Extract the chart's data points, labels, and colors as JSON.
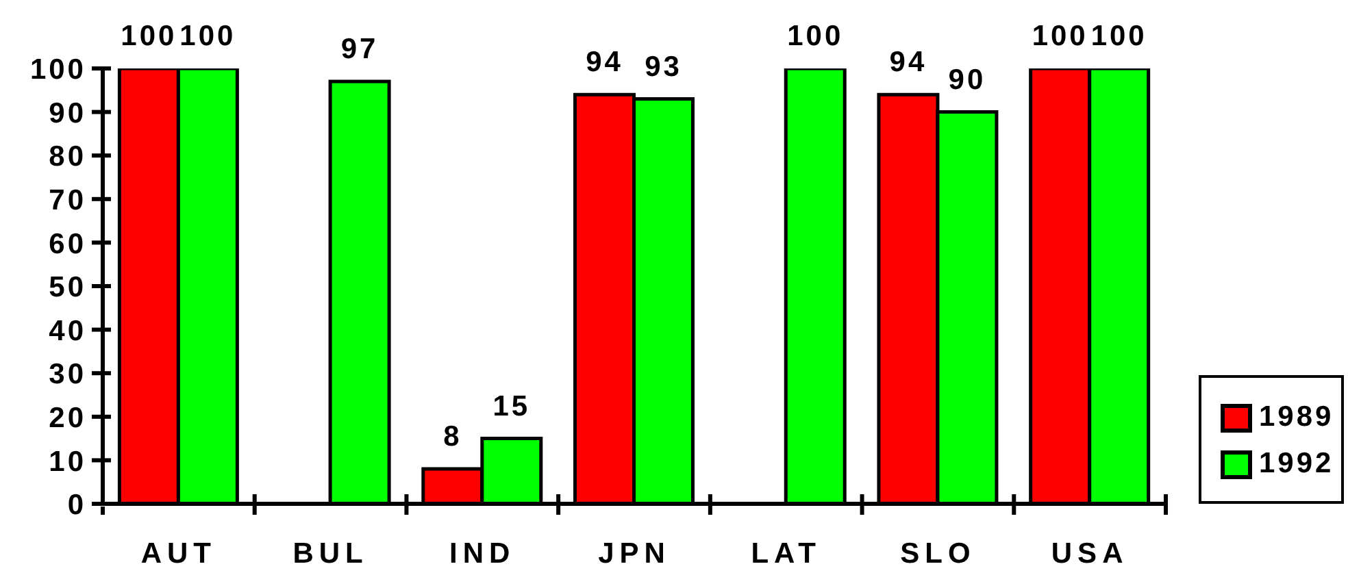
{
  "chart_data": {
    "type": "bar",
    "categories": [
      "AUT",
      "BUL",
      "IND",
      "JPN",
      "LAT",
      "SLO",
      "USA"
    ],
    "series": [
      {
        "name": "1989",
        "color": "#ff0000",
        "values": [
          100,
          null,
          8,
          94,
          null,
          94,
          100
        ]
      },
      {
        "name": "1992",
        "color": "#00ff00",
        "values": [
          100,
          97,
          15,
          93,
          100,
          90,
          100
        ]
      }
    ],
    "ylim": [
      0,
      100
    ],
    "yticks": [
      0,
      10,
      20,
      30,
      40,
      50,
      60,
      70,
      80,
      90,
      100
    ],
    "legend": "bottom right",
    "data_labels": true
  }
}
